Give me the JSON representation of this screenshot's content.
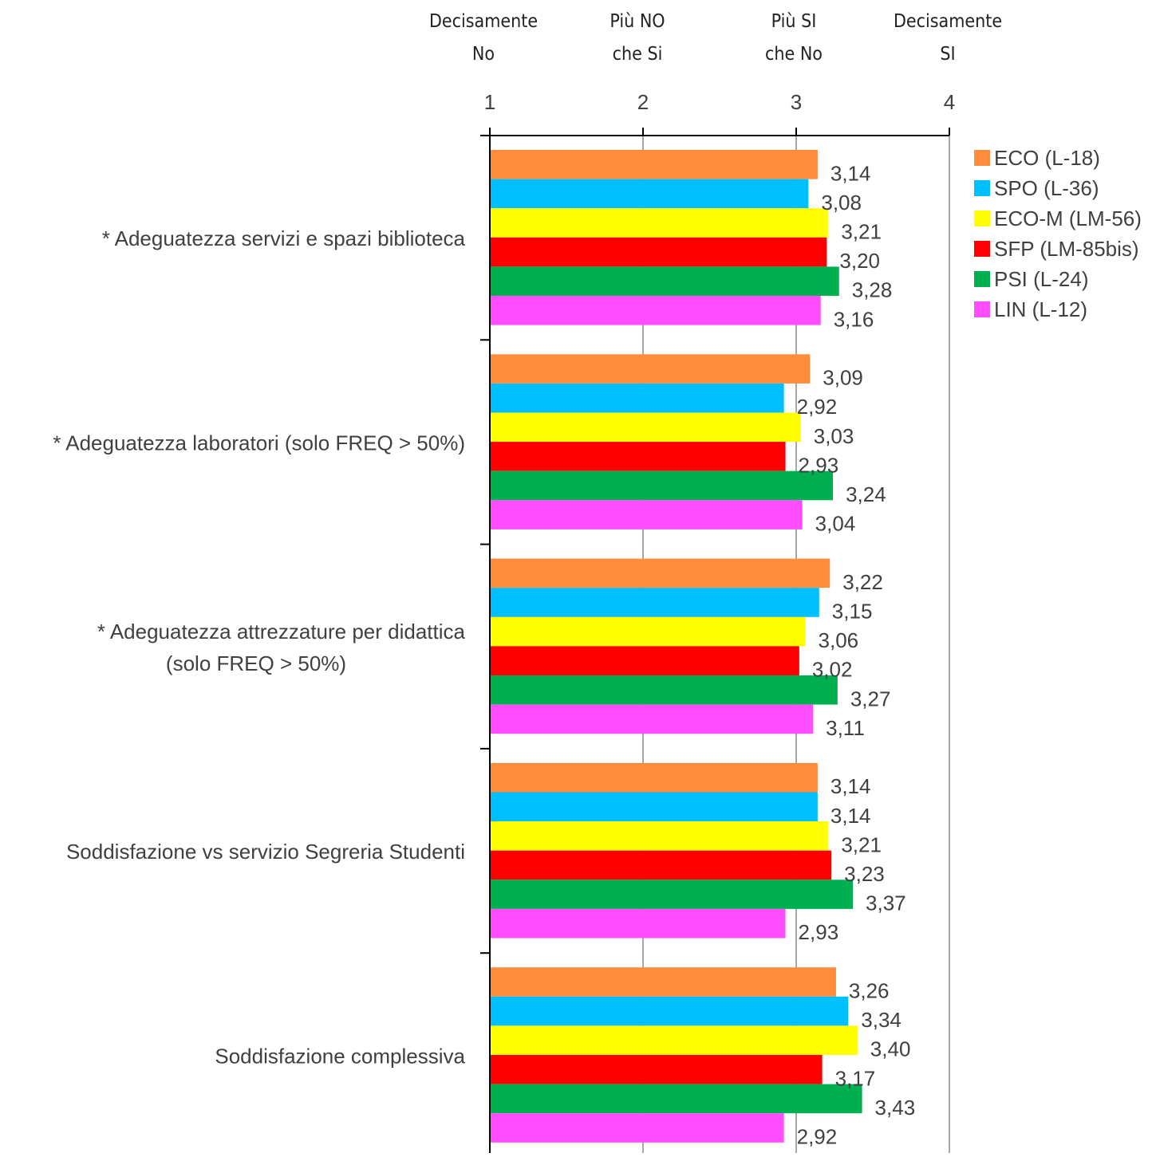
{
  "chart_data": {
    "type": "bar",
    "orientation": "horizontal",
    "title": "",
    "xlabel": "",
    "ylabel": "",
    "xlim": [
      1,
      4
    ],
    "grid": true,
    "legend_position": "right",
    "scale_labels": [
      {
        "value": 1,
        "lines": [
          "Decisamente",
          "No"
        ]
      },
      {
        "value": 2,
        "lines": [
          "Più NO",
          "che Si"
        ]
      },
      {
        "value": 3,
        "lines": [
          "Più SI",
          "che No"
        ]
      },
      {
        "value": 4,
        "lines": [
          "Decisamente",
          "SI"
        ]
      }
    ],
    "ticks": [
      {
        "value": 1,
        "label": "1"
      },
      {
        "value": 2,
        "label": "2"
      },
      {
        "value": 3,
        "label": "3"
      },
      {
        "value": 4,
        "label": "4"
      }
    ],
    "categories": [
      [
        "* Adeguatezza servizi e spazi biblioteca"
      ],
      [
        "* Adeguatezza laboratori  (solo FREQ > 50%)"
      ],
      [
        "* Adeguatezza attrezzature per didattica",
        "(solo FREQ > 50%)"
      ],
      [
        "Soddisfazione vs servizio Segreria Studenti"
      ],
      [
        "Soddisfazione complessiva"
      ]
    ],
    "series": [
      {
        "name": "ECO (L-18)",
        "color": "#FF8B3D",
        "values": [
          3.14,
          3.09,
          3.22,
          3.14,
          3.26
        ],
        "labels": [
          "3,14",
          "3,09",
          "3,22",
          "3,14",
          "3,26"
        ]
      },
      {
        "name": "SPO (L-36)",
        "color": "#00BFFF",
        "values": [
          3.08,
          2.92,
          3.15,
          3.14,
          3.34
        ],
        "labels": [
          "3,08",
          "2,92",
          "3,15",
          "3,14",
          "3,34"
        ]
      },
      {
        "name": "ECO-M (LM-56)",
        "color": "#FFFF00",
        "values": [
          3.21,
          3.03,
          3.06,
          3.21,
          3.4
        ],
        "labels": [
          "3,21",
          "3,03",
          "3,06",
          "3,21",
          "3,40"
        ]
      },
      {
        "name": "SFP (LM-85bis)",
        "color": "#FF0000",
        "values": [
          3.2,
          2.93,
          3.02,
          3.23,
          3.17
        ],
        "labels": [
          "3,20",
          "2,93",
          "3,02",
          "3,23",
          "3,17"
        ]
      },
      {
        "name": "PSI (L-24)",
        "color": "#00B050",
        "values": [
          3.28,
          3.24,
          3.27,
          3.37,
          3.43
        ],
        "labels": [
          "3,28",
          "3,24",
          "3,27",
          "3,37",
          "3,43"
        ]
      },
      {
        "name": "LIN (L-12)",
        "color": "#FF4DFF",
        "values": [
          3.16,
          3.04,
          3.11,
          2.93,
          2.92
        ],
        "labels": [
          "3,16",
          "3,04",
          "3,11",
          "2,93",
          "2,92"
        ]
      }
    ]
  }
}
